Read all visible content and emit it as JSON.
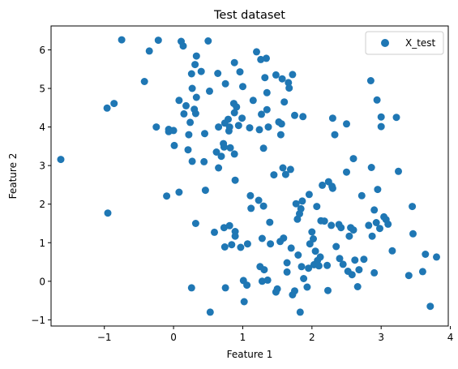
{
  "chart_data": {
    "type": "scatter",
    "title": "Test dataset",
    "xlabel": "Feature 1",
    "ylabel": "Feature 2",
    "xlim": [
      -1.77,
      3.97
    ],
    "ylim": [
      -1.16,
      6.62
    ],
    "xticks": [
      -1,
      0,
      1,
      2,
      3,
      4
    ],
    "yticks": [
      -1,
      0,
      1,
      2,
      3,
      4,
      5,
      6
    ],
    "grid": false,
    "legend": "top-right",
    "point_color": "#1f77b4",
    "series": [
      {
        "name": "X_test",
        "points": [
          [
            -1.63,
            3.16
          ],
          [
            -0.96,
            4.49
          ],
          [
            -0.86,
            4.61
          ],
          [
            -0.95,
            1.77
          ],
          [
            -0.75,
            6.26
          ],
          [
            -0.35,
            5.97
          ],
          [
            -0.42,
            5.18
          ],
          [
            -0.22,
            6.25
          ],
          [
            -0.25,
            4.0
          ],
          [
            -0.07,
            3.94
          ],
          [
            -0.07,
            3.88
          ],
          [
            0.0,
            3.91
          ],
          [
            0.01,
            3.52
          ],
          [
            -0.1,
            2.21
          ],
          [
            0.08,
            2.31
          ],
          [
            0.08,
            4.69
          ],
          [
            0.11,
            6.22
          ],
          [
            0.14,
            6.1
          ],
          [
            0.15,
            4.34
          ],
          [
            0.21,
            3.41
          ],
          [
            0.18,
            4.55
          ],
          [
            0.22,
            3.8
          ],
          [
            0.24,
            4.12
          ],
          [
            0.26,
            5.38
          ],
          [
            0.27,
            5.0
          ],
          [
            0.27,
            3.11
          ],
          [
            0.3,
            4.46
          ],
          [
            0.31,
            5.62
          ],
          [
            0.32,
            4.35
          ],
          [
            0.33,
            4.77
          ],
          [
            0.33,
            5.84
          ],
          [
            0.32,
            1.5
          ],
          [
            0.4,
            5.44
          ],
          [
            0.44,
            3.1
          ],
          [
            0.45,
            3.83
          ],
          [
            0.46,
            2.36
          ],
          [
            0.5,
            6.23
          ],
          [
            0.52,
            4.93
          ],
          [
            0.26,
            -0.17
          ],
          [
            0.53,
            -0.8
          ],
          [
            0.59,
            1.27
          ],
          [
            0.62,
            3.35
          ],
          [
            0.64,
            5.39
          ],
          [
            0.65,
            2.94
          ],
          [
            0.65,
            4.0
          ],
          [
            0.69,
            3.24
          ],
          [
            0.72,
            3.57
          ],
          [
            0.73,
            3.48
          ],
          [
            0.73,
            1.39
          ],
          [
            0.75,
            5.12
          ],
          [
            0.74,
            4.1
          ],
          [
            0.75,
            -0.17
          ],
          [
            0.74,
            0.89
          ],
          [
            0.79,
            4.2
          ],
          [
            0.8,
            3.9
          ],
          [
            0.81,
            4.0
          ],
          [
            0.81,
            1.44
          ],
          [
            0.82,
            3.46
          ],
          [
            0.84,
            0.95
          ],
          [
            0.87,
            4.61
          ],
          [
            0.88,
            4.37
          ],
          [
            0.89,
            1.29
          ],
          [
            0.88,
            3.3
          ],
          [
            0.89,
            1.17
          ],
          [
            0.88,
            5.67
          ],
          [
            0.89,
            2.62
          ],
          [
            0.91,
            4.52
          ],
          [
            0.94,
            4.04
          ],
          [
            0.96,
            5.43
          ],
          [
            0.99,
            4.23
          ],
          [
            0.97,
            0.88
          ],
          [
            1.0,
            5.05
          ],
          [
            1.01,
            0.02
          ],
          [
            1.02,
            -0.53
          ],
          [
            1.06,
            -0.1
          ],
          [
            1.07,
            0.97
          ],
          [
            1.1,
            3.98
          ],
          [
            1.11,
            2.22
          ],
          [
            1.12,
            1.89
          ],
          [
            1.15,
            4.69
          ],
          [
            1.2,
            5.95
          ],
          [
            1.23,
            2.1
          ],
          [
            1.24,
            3.93
          ],
          [
            1.25,
            0.38
          ],
          [
            1.26,
            5.75
          ],
          [
            1.27,
            4.33
          ],
          [
            1.3,
            3.45
          ],
          [
            1.3,
            1.95
          ],
          [
            1.28,
            1.11
          ],
          [
            1.28,
            0.0
          ],
          [
            1.31,
            0.3
          ],
          [
            1.32,
            5.28
          ],
          [
            1.35,
            4.45
          ],
          [
            1.34,
            5.78
          ],
          [
            1.35,
            4.89
          ],
          [
            1.37,
            4.0
          ],
          [
            1.36,
            0.03
          ],
          [
            1.39,
            1.53
          ],
          [
            1.4,
            0.97
          ],
          [
            1.45,
            2.76
          ],
          [
            1.48,
            5.35
          ],
          [
            1.48,
            -0.28
          ],
          [
            1.5,
            -0.2
          ],
          [
            1.52,
            4.13
          ],
          [
            1.54,
            1.03
          ],
          [
            1.55,
            3.8
          ],
          [
            1.56,
            4.08
          ],
          [
            1.57,
            5.25
          ],
          [
            1.58,
            2.94
          ],
          [
            1.59,
            1.12
          ],
          [
            1.6,
            4.65
          ],
          [
            1.62,
            2.77
          ],
          [
            1.64,
            0.48
          ],
          [
            1.64,
            0.24
          ],
          [
            1.66,
            5.15
          ],
          [
            1.67,
            5.01
          ],
          [
            1.69,
            2.9
          ],
          [
            1.7,
            0.86
          ],
          [
            1.72,
            5.36
          ],
          [
            1.72,
            -0.35
          ],
          [
            1.75,
            -0.25
          ],
          [
            1.75,
            4.3
          ],
          [
            1.77,
            2.01
          ],
          [
            1.79,
            1.61
          ],
          [
            1.8,
            0.68
          ],
          [
            1.82,
            1.75
          ],
          [
            1.84,
            1.88
          ],
          [
            1.83,
            -0.8
          ],
          [
            1.85,
            0.38
          ],
          [
            1.86,
            2.08
          ],
          [
            1.87,
            4.27
          ],
          [
            1.88,
            0.07
          ],
          [
            1.93,
            -0.15
          ],
          [
            1.95,
            0.34
          ],
          [
            1.96,
            2.25
          ],
          [
            1.97,
            0.97
          ],
          [
            2.0,
            1.28
          ],
          [
            2.02,
            1.1
          ],
          [
            2.03,
            0.43
          ],
          [
            2.05,
            0.78
          ],
          [
            2.07,
            1.94
          ],
          [
            2.08,
            0.54
          ],
          [
            2.1,
            0.4
          ],
          [
            2.12,
            0.63
          ],
          [
            2.13,
            1.57
          ],
          [
            2.15,
            2.49
          ],
          [
            2.18,
            1.56
          ],
          [
            2.22,
            0.41
          ],
          [
            2.23,
            -0.24
          ],
          [
            2.24,
            2.58
          ],
          [
            2.28,
            1.45
          ],
          [
            2.29,
            2.46
          ],
          [
            2.3,
            4.23
          ],
          [
            2.3,
            2.41
          ],
          [
            2.33,
            3.8
          ],
          [
            2.35,
            0.9
          ],
          [
            2.39,
            1.47
          ],
          [
            2.4,
            0.59
          ],
          [
            2.42,
            1.39
          ],
          [
            2.45,
            0.44
          ],
          [
            2.5,
            2.83
          ],
          [
            2.5,
            4.08
          ],
          [
            2.52,
            0.26
          ],
          [
            2.54,
            1.17
          ],
          [
            2.56,
            1.39
          ],
          [
            2.58,
            0.17
          ],
          [
            2.6,
            1.33
          ],
          [
            2.6,
            3.18
          ],
          [
            2.62,
            0.55
          ],
          [
            2.66,
            -0.14
          ],
          [
            2.68,
            0.3
          ],
          [
            2.72,
            2.22
          ],
          [
            2.75,
            0.57
          ],
          [
            2.82,
            1.45
          ],
          [
            2.85,
            5.2
          ],
          [
            2.86,
            2.95
          ],
          [
            2.87,
            1.17
          ],
          [
            2.9,
            1.85
          ],
          [
            2.9,
            0.22
          ],
          [
            2.93,
            1.52
          ],
          [
            2.94,
            4.7
          ],
          [
            2.95,
            2.38
          ],
          [
            2.98,
            1.37
          ],
          [
            3.0,
            4.01
          ],
          [
            3.0,
            4.26
          ],
          [
            3.04,
            1.67
          ],
          [
            3.07,
            1.6
          ],
          [
            3.1,
            1.48
          ],
          [
            3.16,
            0.79
          ],
          [
            3.22,
            4.25
          ],
          [
            3.25,
            2.85
          ],
          [
            3.4,
            0.15
          ],
          [
            3.45,
            1.94
          ],
          [
            3.46,
            1.23
          ],
          [
            3.6,
            0.25
          ],
          [
            3.64,
            0.7
          ],
          [
            3.71,
            -0.65
          ],
          [
            3.8,
            0.63
          ]
        ]
      }
    ]
  }
}
